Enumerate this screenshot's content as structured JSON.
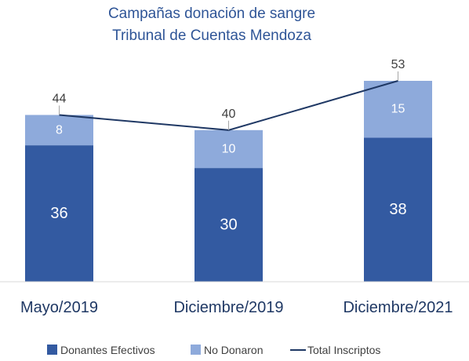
{
  "chart_data": {
    "type": "bar",
    "stacked": true,
    "title": "Campañas donación de sangre",
    "subtitle": "Tribunal de Cuentas Mendoza",
    "categories": [
      "Mayo/2019",
      "Diciembre/2019",
      "Diciembre/2021"
    ],
    "series": [
      {
        "name": "Donantes Efectivos",
        "type": "bar",
        "color": "#335aa1",
        "values": [
          36,
          30,
          38
        ]
      },
      {
        "name": "No Donaron",
        "type": "bar",
        "color": "#8eaadb",
        "values": [
          8,
          10,
          15
        ]
      },
      {
        "name": "Total Inscriptos",
        "type": "line",
        "color": "#1f3864",
        "values": [
          44,
          40,
          53
        ]
      }
    ],
    "ylim": [
      0,
      55
    ],
    "grid": false,
    "legend": "bottom"
  }
}
